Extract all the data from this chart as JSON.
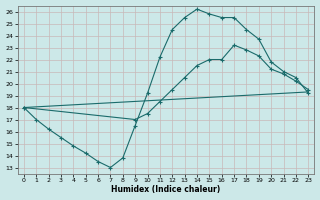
{
  "xlabel": "Humidex (Indice chaleur)",
  "bg_color": "#cce8e8",
  "line_color": "#1a6b6b",
  "grid_color": "#b0d0d0",
  "xlim": [
    -0.5,
    23.5
  ],
  "ylim": [
    12.5,
    26.5
  ],
  "xticks": [
    0,
    1,
    2,
    3,
    4,
    5,
    6,
    7,
    8,
    9,
    10,
    11,
    12,
    13,
    14,
    15,
    16,
    17,
    18,
    19,
    20,
    21,
    22,
    23
  ],
  "yticks": [
    13,
    14,
    15,
    16,
    17,
    18,
    19,
    20,
    21,
    22,
    23,
    24,
    25,
    26
  ],
  "curve1_x": [
    0,
    1,
    2,
    3,
    4,
    5,
    6,
    7,
    8,
    9,
    10,
    11,
    12,
    13,
    14,
    15,
    16,
    17,
    18,
    19,
    20,
    21,
    22,
    23
  ],
  "curve1_y": [
    18.0,
    17.0,
    16.2,
    15.5,
    14.8,
    14.2,
    13.5,
    13.0,
    13.8,
    16.5,
    19.2,
    22.2,
    24.5,
    25.5,
    26.2,
    25.8,
    25.5,
    25.5,
    24.5,
    23.7,
    21.8,
    21.0,
    20.5,
    19.2
  ],
  "curve2_x": [
    0,
    9,
    10,
    11,
    12,
    13,
    14,
    15,
    16,
    17,
    18,
    19,
    20,
    21,
    22,
    23
  ],
  "curve2_y": [
    18.0,
    17.0,
    17.5,
    18.5,
    19.5,
    20.5,
    21.5,
    22.0,
    22.0,
    23.2,
    22.8,
    22.3,
    21.2,
    20.8,
    20.2,
    19.5
  ],
  "curve3_x": [
    0,
    23
  ],
  "curve3_y": [
    18.0,
    19.3
  ]
}
